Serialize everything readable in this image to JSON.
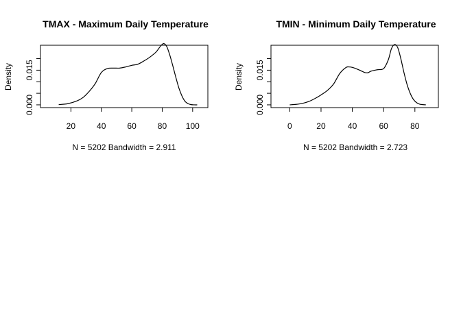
{
  "chart_data": [
    {
      "type": "line",
      "title": "TMAX - Maximum Daily Temperature",
      "xlabel": "N = 5202   Bandwidth = 2.911",
      "ylabel": "Density",
      "xlim": [
        0,
        110
      ],
      "ylim": [
        -0.0012,
        0.0258
      ],
      "x_ticks": [
        20,
        40,
        60,
        80,
        100
      ],
      "y_ticks": [
        0.0,
        0.005,
        0.01,
        0.015,
        0.02
      ],
      "y_tick_labels": [
        "0.000",
        "",
        "",
        "0.015",
        ""
      ],
      "grid": false,
      "series": [
        {
          "x": [
            12,
            18,
            24,
            28,
            32,
            36,
            40,
            44,
            48,
            52,
            56,
            60,
            64,
            68,
            72,
            76,
            79,
            81,
            83,
            85,
            87,
            89,
            91,
            93,
            95,
            97,
            99,
            101,
            103
          ],
          "values": [
            0.0001,
            0.0005,
            0.0017,
            0.0032,
            0.0058,
            0.0092,
            0.014,
            0.0157,
            0.0159,
            0.0159,
            0.0164,
            0.0171,
            0.0176,
            0.019,
            0.0207,
            0.0229,
            0.0255,
            0.0265,
            0.0252,
            0.0215,
            0.0168,
            0.0118,
            0.0072,
            0.0038,
            0.0015,
            0.0005,
            0.0001,
            0.0,
            0.0
          ]
        }
      ]
    },
    {
      "type": "line",
      "title": "TMIN - Minimum Daily Temperature",
      "xlabel": "N = 5202   Bandwidth = 2.723",
      "ylabel": "Density",
      "xlim": [
        -12,
        95
      ],
      "ylim": [
        -0.0012,
        0.0258
      ],
      "x_ticks": [
        0,
        20,
        40,
        60,
        80
      ],
      "y_ticks": [
        0.0,
        0.005,
        0.01,
        0.015,
        0.02
      ],
      "y_tick_labels": [
        "0.000",
        "",
        "",
        "0.015",
        ""
      ],
      "grid": false,
      "series": [
        {
          "x": [
            0,
            4,
            8,
            12,
            16,
            20,
            24,
            28,
            32,
            36,
            38,
            40,
            44,
            48,
            50,
            52,
            56,
            60,
            63,
            65,
            67,
            69,
            71,
            73,
            75,
            77,
            79,
            81,
            83,
            85,
            87
          ],
          "values": [
            0.0,
            0.0002,
            0.0006,
            0.0014,
            0.0027,
            0.0043,
            0.0062,
            0.009,
            0.0136,
            0.0162,
            0.0164,
            0.0162,
            0.0152,
            0.014,
            0.0139,
            0.0146,
            0.0152,
            0.0157,
            0.0195,
            0.0243,
            0.0261,
            0.0248,
            0.02,
            0.014,
            0.0088,
            0.005,
            0.0024,
            0.001,
            0.0003,
            0.0001,
            0.0
          ]
        }
      ]
    }
  ]
}
